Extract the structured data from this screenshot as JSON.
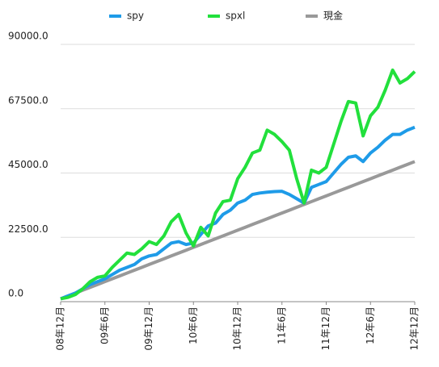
{
  "chart_data": {
    "type": "line",
    "categories": [
      "08年12月",
      null,
      null,
      null,
      null,
      null,
      "09年6月",
      null,
      null,
      null,
      null,
      null,
      "09年12月",
      null,
      null,
      null,
      null,
      null,
      "10年6月",
      null,
      null,
      null,
      null,
      null,
      "10年12月",
      null,
      null,
      null,
      null,
      null,
      "11年6月",
      null,
      null,
      null,
      null,
      null,
      "11年12月",
      null,
      null,
      null,
      null,
      null,
      "12年6月",
      null,
      null,
      null,
      null,
      null,
      "12年12月"
    ],
    "series": [
      {
        "name": "spy",
        "color": "#1e9be8",
        "values": [
          1000,
          2000,
          3000,
          4500,
          6000,
          7000,
          8000,
          9500,
          11000,
          12000,
          13000,
          15000,
          16000,
          16500,
          18500,
          20500,
          21000,
          20000,
          20500,
          23500,
          26500,
          27500,
          30500,
          32000,
          34500,
          35500,
          37500,
          38000,
          38300,
          38500,
          38600,
          37500,
          36000,
          34500,
          40000,
          41000,
          42000,
          45000,
          48000,
          50500,
          51000,
          49000,
          52000,
          54000,
          56500,
          58500,
          58500,
          60000,
          61000
        ]
      },
      {
        "name": "spxl",
        "color": "#22e03c",
        "values": [
          1000,
          1500,
          2500,
          4500,
          7000,
          8500,
          9000,
          12000,
          14500,
          17000,
          16500,
          18500,
          21000,
          20000,
          23000,
          28000,
          30500,
          24000,
          19500,
          26000,
          23000,
          31000,
          35000,
          35500,
          43000,
          47000,
          52000,
          53000,
          60000,
          58500,
          56000,
          53000,
          43000,
          34500,
          46000,
          45000,
          47000,
          55000,
          63000,
          70000,
          69500,
          58000,
          65000,
          68000,
          74000,
          81000,
          76500,
          78000,
          80500
        ]
      },
      {
        "name": "現金",
        "color": "#999999",
        "values": [
          1000,
          2000,
          3000,
          4000,
          5000,
          6000,
          7000,
          8000,
          9000,
          10000,
          11000,
          12000,
          13000,
          14000,
          15000,
          16000,
          17000,
          18000,
          19000,
          20000,
          21000,
          22000,
          23000,
          24000,
          25000,
          26000,
          27000,
          28000,
          29000,
          30000,
          31000,
          32000,
          33000,
          34000,
          35000,
          36000,
          37000,
          38000,
          39000,
          40000,
          41000,
          42000,
          43000,
          44000,
          45000,
          46000,
          47000,
          48000,
          49000
        ]
      }
    ],
    "ylim": [
      0,
      90000
    ],
    "yticks": [
      {
        "value": 0,
        "label": "0.0"
      },
      {
        "value": 22500,
        "label": "22500.0"
      },
      {
        "value": 45000,
        "label": "45000.0"
      },
      {
        "value": 67500,
        "label": "67500.0"
      },
      {
        "value": 90000,
        "label": "90000.0"
      }
    ],
    "grid": true,
    "legend": "top"
  }
}
